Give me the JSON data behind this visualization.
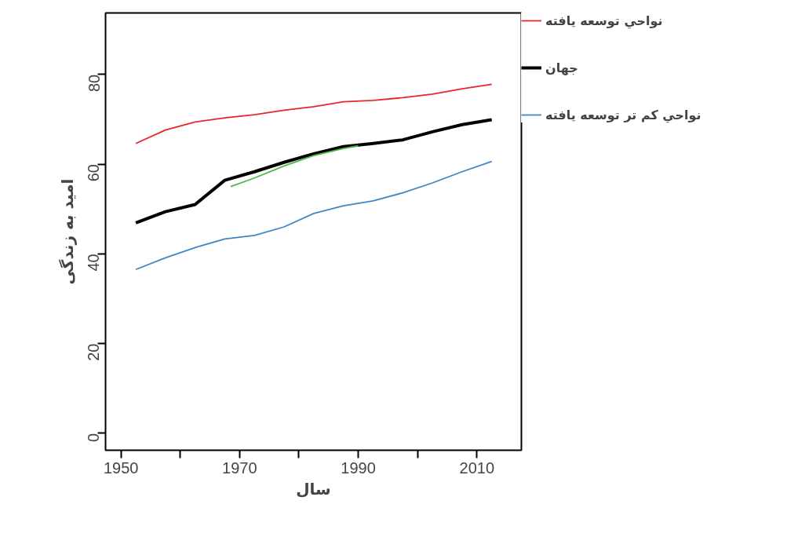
{
  "chart_data": {
    "type": "line",
    "xlabel": "سال",
    "ylabel": "امید به زندگی",
    "x": [
      1952.5,
      1957.5,
      1962.5,
      1967.5,
      1972.5,
      1977.5,
      1982.5,
      1987.5,
      1992.5,
      1997.5,
      2002.5,
      2007.5,
      2012.5
    ],
    "series": [
      {
        "name": "نواحي توسعه يافته",
        "color": "#e8262a",
        "values": [
          64.6,
          67.6,
          69.4,
          70.3,
          71.0,
          72.0,
          72.8,
          73.9,
          74.2,
          74.8,
          75.6,
          76.8,
          77.8
        ]
      },
      {
        "name": "جهان",
        "color": "#000000",
        "values": [
          46.9,
          49.4,
          51.0,
          56.4,
          58.3,
          60.4,
          62.3,
          63.9,
          64.6,
          65.4,
          67.2,
          68.8,
          69.9
        ]
      },
      {
        "name": "نواحي كم تر توسعه يافته",
        "color": "#3f86c6",
        "values": [
          36.5,
          39.1,
          41.4,
          43.3,
          44.1,
          46.0,
          49.0,
          50.7,
          51.8,
          53.6,
          55.8,
          58.3,
          60.6
        ]
      },
      {
        "color": "#4cb849",
        "x": [
          1968.5,
          1972.5,
          1977.5,
          1982.5,
          1987.5,
          1990
        ],
        "values": [
          55.0,
          56.9,
          59.6,
          61.9,
          63.5,
          64.1
        ]
      }
    ],
    "xlim": [
      1947.4,
      2017.5
    ],
    "ylim": [
      -3.8,
      93.7
    ],
    "xticks": [
      1950,
      {
        "value": 1960,
        "label": null
      },
      1970,
      {
        "value": 1980,
        "label": null
      },
      1990,
      {
        "value": 2000,
        "label": null
      },
      2010
    ],
    "yticks": [
      0,
      20,
      40,
      60,
      80
    ],
    "grid": false,
    "legend": "right",
    "line_style": "solid",
    "marker": "none"
  }
}
